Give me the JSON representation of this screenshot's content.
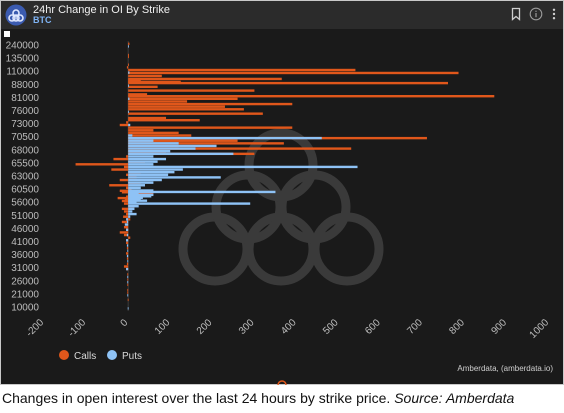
{
  "header": {
    "title": "24hr Change in OI By Strike",
    "subtitle": "BTC"
  },
  "caption": {
    "main": "Changes in open interest over the last 24 hours by strike price.",
    "source": "Source: Amberdata"
  },
  "credit": "Amberdata, (amberdata.io)",
  "colors": {
    "calls": "#e0571b",
    "puts": "#8ec2f5",
    "background": "#1a1a1a",
    "axis_text": "#bdbdbd"
  },
  "chart_data": {
    "type": "bar",
    "orientation": "horizontal",
    "y_tick_labels": [
      "240000",
      "135000",
      "110000",
      "88000",
      "81000",
      "76000",
      "73000",
      "70500",
      "68000",
      "65500",
      "63000",
      "60500",
      "56000",
      "51000",
      "46000",
      "41000",
      "36000",
      "31000",
      "26000",
      "21000",
      "10000"
    ],
    "x_ticks": [
      -200,
      -100,
      0,
      100,
      200,
      300,
      400,
      500,
      600,
      700,
      800,
      900,
      1000
    ],
    "xlim": [
      -200,
      1000
    ],
    "legend_position": "bottom-left",
    "grid": false,
    "series": [
      {
        "name": "Calls",
        "color": "#e0571b",
        "values": [
          {
            "y": 240000,
            "x": 3
          },
          {
            "y": 150000,
            "x": 2
          },
          {
            "y": 135000,
            "x": 2
          },
          {
            "y": 120000,
            "x": 2
          },
          {
            "y": 115000,
            "x": -3
          },
          {
            "y": 110000,
            "x": 540
          },
          {
            "y": 105000,
            "x": 785
          },
          {
            "y": 100000,
            "x": 80
          },
          {
            "y": 95000,
            "x": 365
          },
          {
            "y": 92000,
            "x": 30
          },
          {
            "y": 90000,
            "x": 125
          },
          {
            "y": 88000,
            "x": 760
          },
          {
            "y": 86000,
            "x": 70
          },
          {
            "y": 84000,
            "x": 300
          },
          {
            "y": 82000,
            "x": 45
          },
          {
            "y": 81000,
            "x": 870
          },
          {
            "y": 80000,
            "x": 260
          },
          {
            "y": 79000,
            "x": 140
          },
          {
            "y": 78000,
            "x": 390
          },
          {
            "y": 77000,
            "x": 230
          },
          {
            "y": 76000,
            "x": 275
          },
          {
            "y": 75000,
            "x": 320
          },
          {
            "y": 74000,
            "x": 90
          },
          {
            "y": 73500,
            "x": 170
          },
          {
            "y": 73000,
            "x": -5
          },
          {
            "y": 72500,
            "x": -20
          },
          {
            "y": 72000,
            "x": 390
          },
          {
            "y": 71500,
            "x": 60
          },
          {
            "y": 71000,
            "x": 120
          },
          {
            "y": 70500,
            "x": 150
          },
          {
            "y": 70000,
            "x": 710
          },
          {
            "y": 69500,
            "x": 260
          },
          {
            "y": 69000,
            "x": 370
          },
          {
            "y": 68500,
            "x": 120
          },
          {
            "y": 68000,
            "x": 530
          },
          {
            "y": 67500,
            "x": 90
          },
          {
            "y": 67000,
            "x": 300
          },
          {
            "y": 66500,
            "x": -5
          },
          {
            "y": 66000,
            "x": -35
          },
          {
            "y": 65500,
            "x": 40
          },
          {
            "y": 65000,
            "x": -125
          },
          {
            "y": 64500,
            "x": -10
          },
          {
            "y": 64000,
            "x": -40
          },
          {
            "y": 63500,
            "x": 30
          },
          {
            "y": 63000,
            "x": -5
          },
          {
            "y": 62500,
            "x": 20
          },
          {
            "y": 62000,
            "x": -20
          },
          {
            "y": 61500,
            "x": 30
          },
          {
            "y": 61000,
            "x": -45
          },
          {
            "y": 60500,
            "x": -5
          },
          {
            "y": 60000,
            "x": 8
          },
          {
            "y": 59500,
            "x": -20
          },
          {
            "y": 59000,
            "x": -15
          },
          {
            "y": 58500,
            "x": 60
          },
          {
            "y": 58000,
            "x": 15
          },
          {
            "y": 57500,
            "x": -5
          },
          {
            "y": 57000,
            "x": -25
          },
          {
            "y": 56500,
            "x": -8
          },
          {
            "y": 56000,
            "x": -15
          },
          {
            "y": 55000,
            "x": -10
          },
          {
            "y": 54000,
            "x": 15
          },
          {
            "y": 53000,
            "x": -15
          },
          {
            "y": 52000,
            "x": -10
          },
          {
            "y": 51000,
            "x": -5
          },
          {
            "y": 50000,
            "x": -12
          },
          {
            "y": 49000,
            "x": 5
          },
          {
            "y": 48000,
            "x": -15
          },
          {
            "y": 47000,
            "x": -5
          },
          {
            "y": 46000,
            "x": -10
          },
          {
            "y": 45000,
            "x": -5
          },
          {
            "y": 44000,
            "x": -20
          },
          {
            "y": 43000,
            "x": -10
          },
          {
            "y": 42000,
            "x": 5
          },
          {
            "y": 41000,
            "x": -5
          },
          {
            "y": 40000,
            "x": -5
          },
          {
            "y": 38000,
            "x": -3
          },
          {
            "y": 36000,
            "x": -5
          },
          {
            "y": 34000,
            "x": -3
          },
          {
            "y": 32000,
            "x": -3
          },
          {
            "y": 31000,
            "x": -10
          },
          {
            "y": 30000,
            "x": -5
          },
          {
            "y": 28000,
            "x": -2
          },
          {
            "y": 26000,
            "x": -2
          },
          {
            "y": 24000,
            "x": -2
          },
          {
            "y": 22000,
            "x": -2
          },
          {
            "y": 21000,
            "x": -2
          },
          {
            "y": 15000,
            "x": -1
          }
        ]
      },
      {
        "name": "Puts",
        "color": "#8ec2f5",
        "values": [
          {
            "y": 240000,
            "x": 2
          },
          {
            "y": 110000,
            "x": 3
          },
          {
            "y": 88000,
            "x": 2
          },
          {
            "y": 81000,
            "x": 3
          },
          {
            "y": 76000,
            "x": 2
          },
          {
            "y": 73000,
            "x": 5
          },
          {
            "y": 71000,
            "x": 10
          },
          {
            "y": 70500,
            "x": 460
          },
          {
            "y": 70000,
            "x": 60
          },
          {
            "y": 69500,
            "x": 120
          },
          {
            "y": 69000,
            "x": 210
          },
          {
            "y": 68500,
            "x": 160
          },
          {
            "y": 68000,
            "x": 100
          },
          {
            "y": 67500,
            "x": 250
          },
          {
            "y": 67000,
            "x": 60
          },
          {
            "y": 66500,
            "x": 90
          },
          {
            "y": 66000,
            "x": 70
          },
          {
            "y": 65500,
            "x": 60
          },
          {
            "y": 65000,
            "x": 545
          },
          {
            "y": 64500,
            "x": 130
          },
          {
            "y": 64000,
            "x": 110
          },
          {
            "y": 63500,
            "x": 95
          },
          {
            "y": 63000,
            "x": 220
          },
          {
            "y": 62500,
            "x": 80
          },
          {
            "y": 62000,
            "x": 60
          },
          {
            "y": 61500,
            "x": 40
          },
          {
            "y": 61000,
            "x": 30
          },
          {
            "y": 60500,
            "x": 60
          },
          {
            "y": 60000,
            "x": 350
          },
          {
            "y": 59500,
            "x": 25
          },
          {
            "y": 59000,
            "x": 60
          },
          {
            "y": 58500,
            "x": 55
          },
          {
            "y": 58000,
            "x": 35
          },
          {
            "y": 57500,
            "x": 30
          },
          {
            "y": 57000,
            "x": 45
          },
          {
            "y": 56500,
            "x": 20
          },
          {
            "y": 56000,
            "x": 290
          },
          {
            "y": 55000,
            "x": 25
          },
          {
            "y": 54000,
            "x": 15
          },
          {
            "y": 53000,
            "x": 10
          },
          {
            "y": 52000,
            "x": 20
          },
          {
            "y": 51000,
            "x": 5
          },
          {
            "y": 50000,
            "x": -5
          },
          {
            "y": 49000,
            "x": -3
          },
          {
            "y": 48000,
            "x": -8
          },
          {
            "y": 46000,
            "x": -5
          },
          {
            "y": 44000,
            "x": -3
          },
          {
            "y": 42000,
            "x": -5
          },
          {
            "y": 40000,
            "x": -3
          },
          {
            "y": 38000,
            "x": -2
          },
          {
            "y": 36000,
            "x": -3
          },
          {
            "y": 34000,
            "x": -2
          },
          {
            "y": 31000,
            "x": -5
          },
          {
            "y": 28000,
            "x": -2
          },
          {
            "y": 26000,
            "x": -2
          },
          {
            "y": 21000,
            "x": -2
          },
          {
            "y": 10000,
            "x": -1
          }
        ]
      }
    ]
  },
  "icons": {
    "logo": "amberdata-logo-icon",
    "bookmark": "bookmark-icon",
    "info": "info-icon",
    "more": "more-vertical-icon"
  }
}
